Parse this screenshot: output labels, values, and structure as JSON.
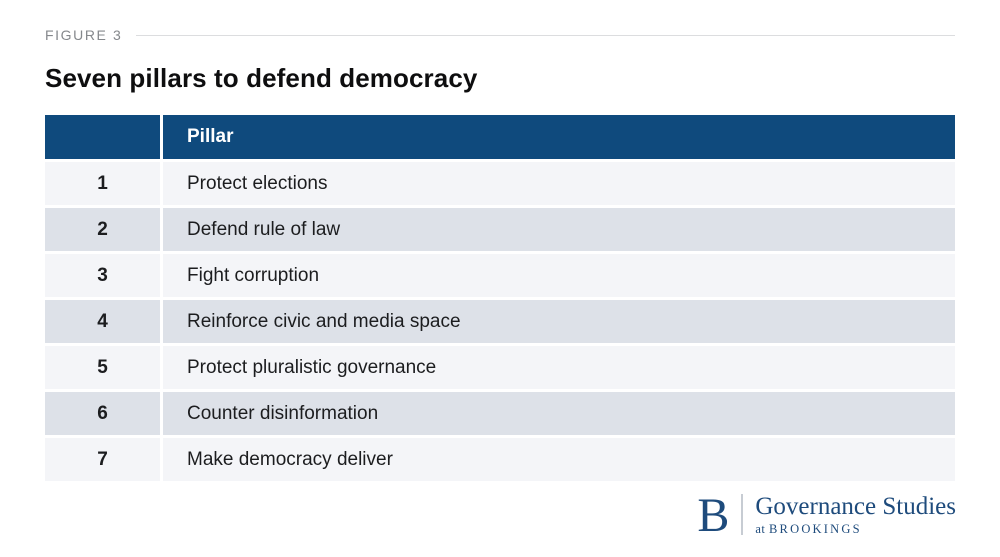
{
  "figure_label": "FIGURE 3",
  "title": "Seven pillars to defend democracy",
  "table": {
    "header": {
      "pillar_col": "Pillar"
    },
    "rows": [
      {
        "number": "1",
        "pillar": "Protect elections"
      },
      {
        "number": "2",
        "pillar": "Defend rule of law"
      },
      {
        "number": "3",
        "pillar": "Fight corruption"
      },
      {
        "number": "4",
        "pillar": "Reinforce civic and media space"
      },
      {
        "number": "5",
        "pillar": "Protect pluralistic governance"
      },
      {
        "number": "6",
        "pillar": "Counter disinformation"
      },
      {
        "number": "7",
        "pillar": "Make democracy deliver"
      }
    ]
  },
  "footer": {
    "logo_letter": "B",
    "org_name": "Governance Studies",
    "org_sub_prefix": "at",
    "org_sub_name": "BROOKINGS"
  },
  "colors": {
    "header_navy": "#0f4a7d",
    "row_odd": "#f4f5f8",
    "row_even": "#dde1e8",
    "logo_navy": "#1e4b7c",
    "figure_label_gray": "#85888c",
    "rule_gray": "#dcdddf"
  },
  "chart_data": {
    "type": "table",
    "title": "Seven pillars to defend democracy",
    "figure_label": "FIGURE 3",
    "columns": [
      "",
      "Pillar"
    ],
    "rows": [
      [
        "1",
        "Protect elections"
      ],
      [
        "2",
        "Defend rule of law"
      ],
      [
        "3",
        "Fight corruption"
      ],
      [
        "4",
        "Reinforce civic and media space"
      ],
      [
        "5",
        "Protect pluralistic governance"
      ],
      [
        "6",
        "Counter disinformation"
      ],
      [
        "7",
        "Make democracy deliver"
      ]
    ],
    "footer_branding": "B | Governance Studies at BROOKINGS"
  }
}
